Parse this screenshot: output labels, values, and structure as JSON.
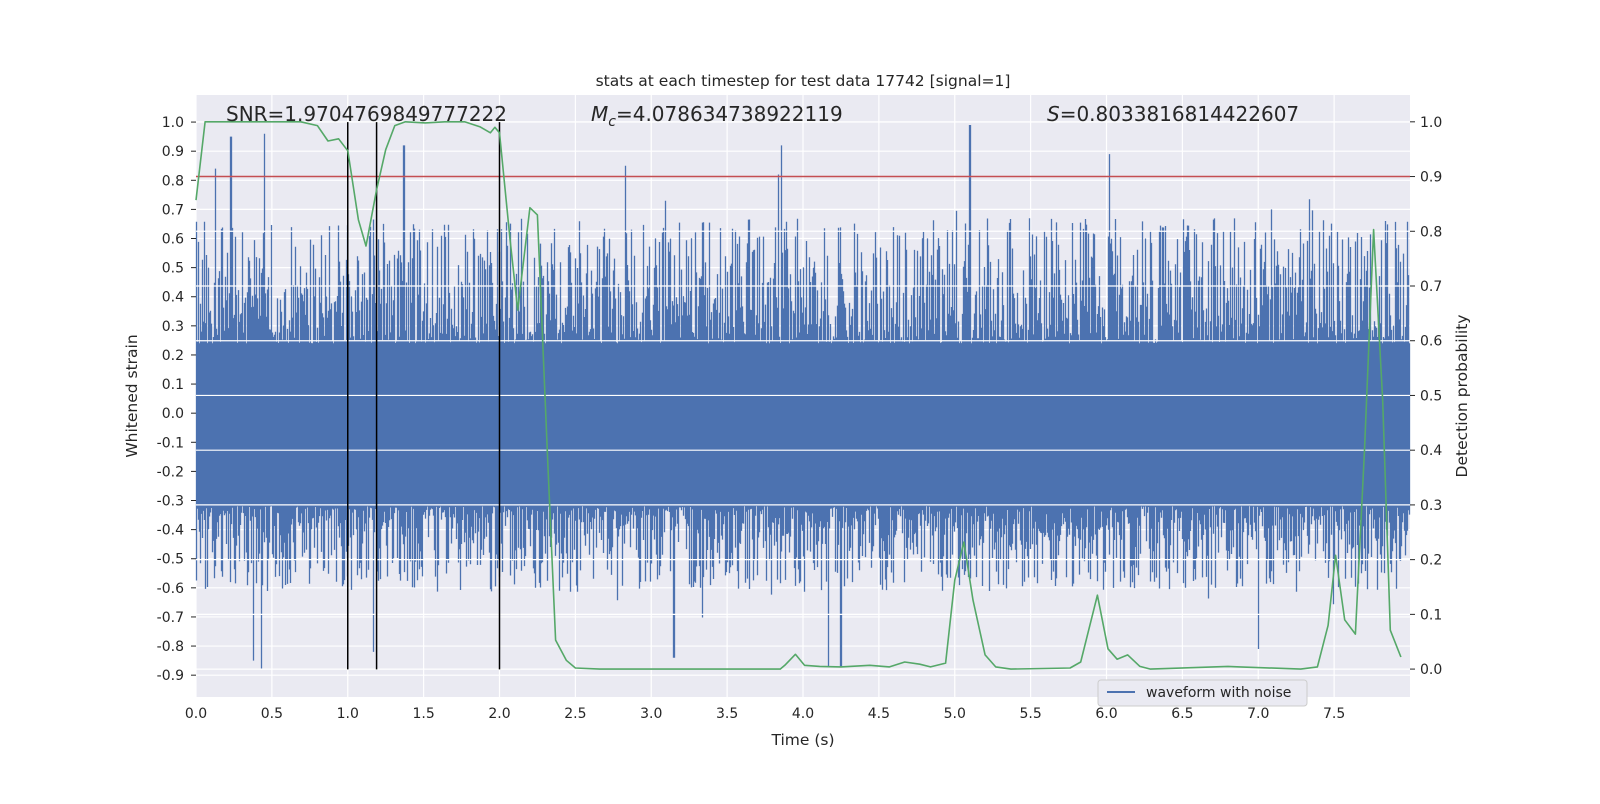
{
  "chart_data": {
    "type": "line",
    "title": "stats at each timestep for test data 17742 [signal=1]",
    "xlabel": "Time (s)",
    "ylabel": "Whitened strain",
    "ylabel_right": "Detection probability",
    "xlim": [
      0.0,
      8.0
    ],
    "ylim": [
      -0.975,
      1.093
    ],
    "ylim_right": [
      -0.051,
      1.049
    ],
    "grid": true,
    "legend": {
      "placement": "lower-right",
      "entries": [
        "waveform with noise"
      ]
    },
    "x_ticks": [
      "0.0",
      "0.5",
      "1.0",
      "1.5",
      "2.0",
      "2.5",
      "3.0",
      "3.5",
      "4.0",
      "4.5",
      "5.0",
      "5.5",
      "6.0",
      "6.5",
      "7.0",
      "7.5"
    ],
    "y_ticks": [
      "1.0",
      "0.9",
      "0.8",
      "0.7",
      "0.6",
      "0.5",
      "0.4",
      "0.3",
      "0.2",
      "0.1",
      "0.0",
      "-0.1",
      "-0.2",
      "-0.3",
      "-0.4",
      "-0.5",
      "-0.6",
      "-0.7",
      "-0.8",
      "-0.9"
    ],
    "y_ticks_right": [
      "1.0",
      "0.9",
      "0.8",
      "0.7",
      "0.6",
      "0.5",
      "0.4",
      "0.3",
      "0.2",
      "0.1",
      "0.0"
    ],
    "annotations": {
      "snr": "SNR=1.9704769849777222",
      "mc_symbol": "M",
      "mc_sub": "c",
      "mc_value": "=4.078634738922119",
      "s_symbol": "S",
      "s_value": "=0.8033816814422607"
    },
    "series": [
      {
        "name": "waveform with noise",
        "axis": "left",
        "color": "#4c72b0",
        "kind": "noise",
        "duration_s": 8.0,
        "core_band": [
          -0.32,
          0.24
        ],
        "typical_peak": [
          -0.6,
          0.65
        ],
        "notable_peaks": [
          [
            0.13,
            0.84
          ],
          [
            0.23,
            0.95
          ],
          [
            0.45,
            0.96
          ],
          [
            0.43,
            -0.88
          ],
          [
            0.38,
            -0.85
          ],
          [
            1.17,
            -0.82
          ],
          [
            1.37,
            0.92
          ],
          [
            2.83,
            0.85
          ],
          [
            3.84,
            0.82
          ],
          [
            3.86,
            0.92
          ],
          [
            5.1,
            0.99
          ],
          [
            6.02,
            0.89
          ],
          [
            4.17,
            -0.87
          ],
          [
            4.25,
            -0.87
          ],
          [
            3.15,
            -0.84
          ],
          [
            7.0,
            -0.81
          ]
        ]
      },
      {
        "name": "detection probability",
        "axis": "right",
        "color": "#55a868",
        "x": [
          0,
          0.06,
          0.42,
          0.69,
          0.8,
          0.87,
          0.94,
          1.0,
          1.07,
          1.12,
          1.19,
          1.25,
          1.31,
          1.38,
          1.51,
          1.64,
          1.77,
          1.87,
          1.94,
          1.97,
          2.0,
          2.07,
          2.12,
          2.2,
          2.25,
          2.32,
          2.37,
          2.44,
          2.5,
          2.66,
          3.32,
          3.85,
          3.88,
          3.95,
          4.01,
          4.11,
          4.25,
          4.44,
          4.57,
          4.67,
          4.77,
          4.84,
          4.94,
          5.0,
          5.06,
          5.12,
          5.2,
          5.27,
          5.37,
          5.76,
          5.83,
          5.94,
          6.01,
          6.07,
          6.14,
          6.22,
          6.29,
          6.8,
          6.88,
          7.28,
          7.39,
          7.46,
          7.51,
          7.57,
          7.64,
          7.7,
          7.76,
          7.82,
          7.87,
          7.94
        ],
        "y": [
          0.857,
          1.0,
          1.0,
          1.0,
          0.993,
          0.965,
          0.969,
          0.947,
          0.821,
          0.773,
          0.876,
          0.949,
          0.993,
          1.0,
          0.998,
          1.0,
          1.0,
          0.991,
          0.98,
          0.99,
          0.98,
          0.784,
          0.656,
          0.843,
          0.83,
          0.364,
          0.053,
          0.016,
          0.002,
          0.0,
          0.0,
          0.0,
          0.007,
          0.027,
          0.007,
          0.005,
          0.004,
          0.007,
          0.004,
          0.013,
          0.009,
          0.004,
          0.011,
          0.163,
          0.232,
          0.126,
          0.026,
          0.004,
          0.0,
          0.002,
          0.013,
          0.135,
          0.037,
          0.018,
          0.026,
          0.005,
          0.0,
          0.005,
          0.004,
          0.0,
          0.004,
          0.08,
          0.208,
          0.09,
          0.064,
          0.4,
          0.803,
          0.49,
          0.071,
          0.022
        ]
      }
    ],
    "threshold": {
      "axis": "right",
      "value": 0.9,
      "color": "#c44e52"
    },
    "vertical_markers": {
      "x": [
        1.0,
        1.19,
        2.0
      ],
      "y_range_left": [
        -0.88,
        1.0
      ],
      "color": "#000000"
    }
  }
}
